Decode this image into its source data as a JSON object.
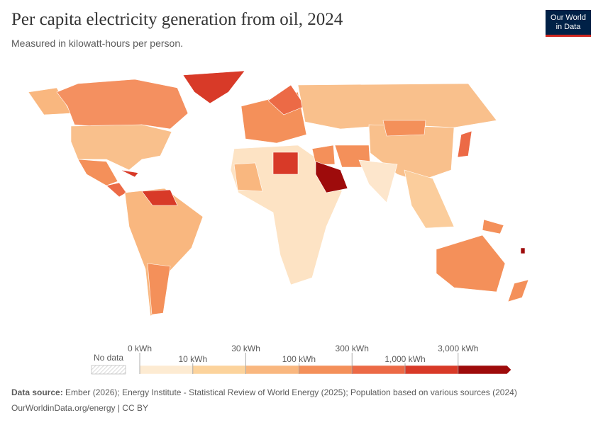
{
  "header": {
    "title": "Per capita electricity generation from oil, 2024",
    "subtitle": "Measured in kilowatt-hours per person.",
    "logo": [
      "Our World",
      "in Data"
    ]
  },
  "legend": {
    "no_data": "No data",
    "ticks": [
      "0 kWh",
      "10 kWh",
      "30 kWh",
      "100 kWh",
      "300 kWh",
      "1,000 kWh",
      "3,000 kWh"
    ],
    "colors": [
      "#fdebd2",
      "#fcd39c",
      "#f9b77f",
      "#f4905a",
      "#ec6a46",
      "#d83a28",
      "#9e0b0b"
    ]
  },
  "footer": {
    "source_label": "Data source:",
    "source": "Ember (2026); Energy Institute - Statistical Review of World Energy (2025); Population based on various sources (2024)",
    "url": "OurWorldinData.org/energy | CC BY"
  }
}
